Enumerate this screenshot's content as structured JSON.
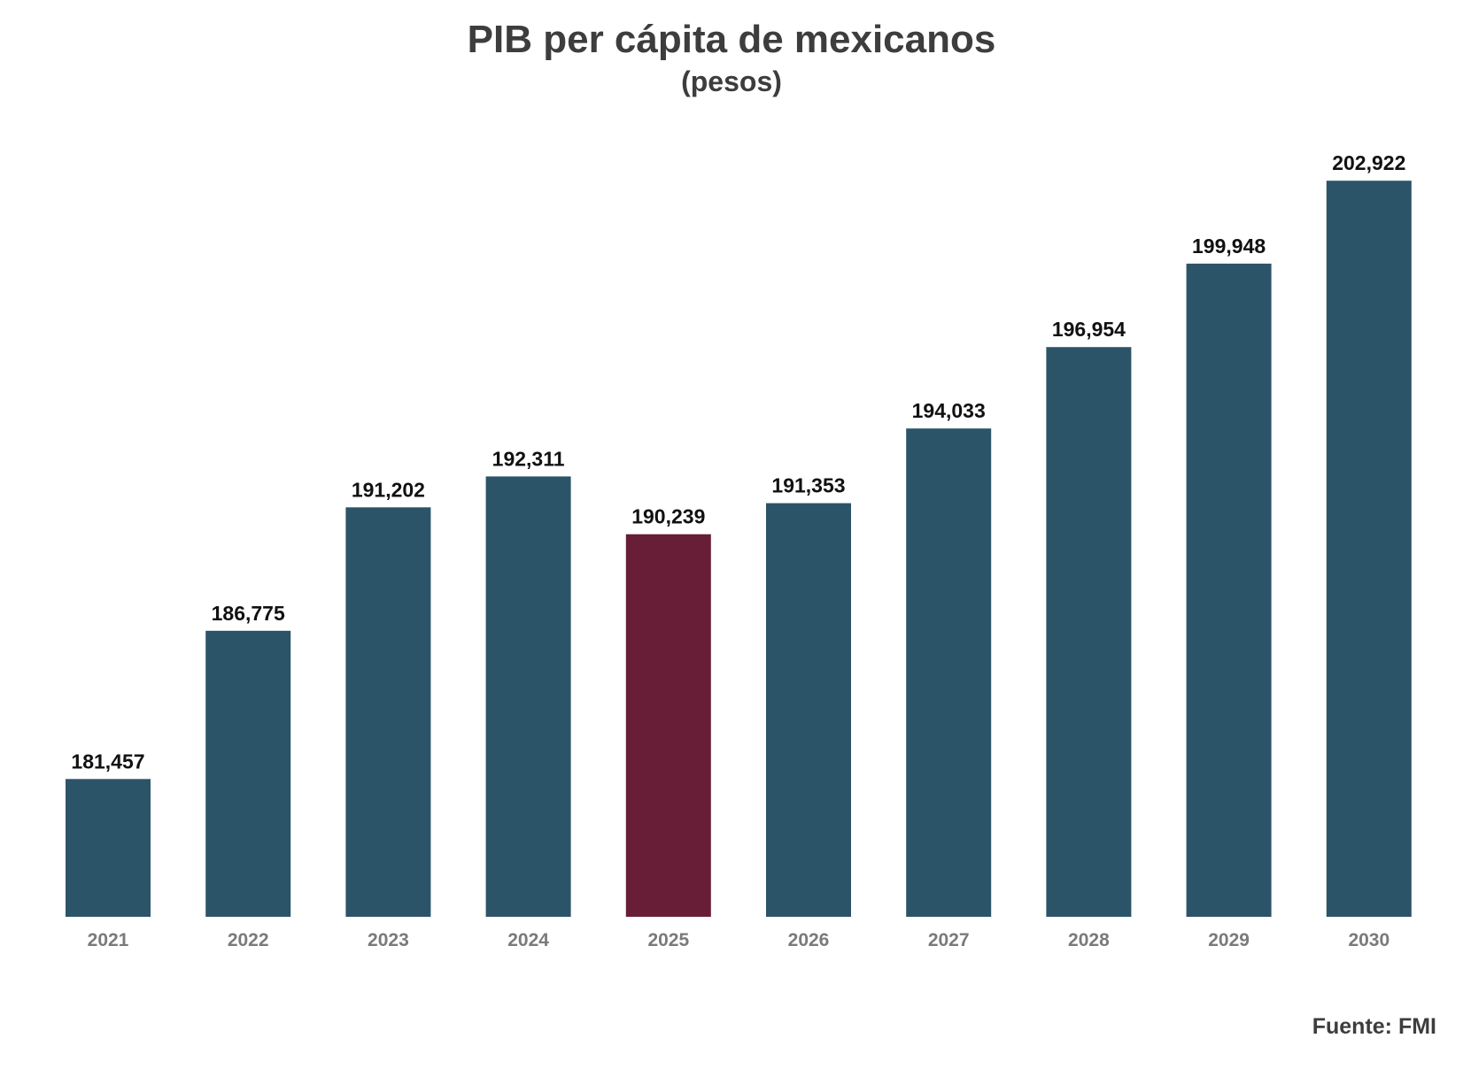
{
  "chart_data": {
    "type": "bar",
    "title": "PIB per cápita de mexicanos",
    "subtitle": "(pesos)",
    "xlabel": "",
    "ylabel": "",
    "categories": [
      "2021",
      "2022",
      "2023",
      "2024",
      "2025",
      "2026",
      "2027",
      "2028",
      "2029",
      "2030"
    ],
    "values": [
      181457,
      186775,
      191202,
      192311,
      190239,
      191353,
      194033,
      196954,
      199948,
      202922
    ],
    "value_labels": [
      "181,457",
      "186,775",
      "191,202",
      "192,311",
      "190,239",
      "191,353",
      "194,033",
      "196,954",
      "199,948",
      "202,922"
    ],
    "highlight_category": "2025",
    "colors": {
      "bar": "#2c5468",
      "highlight": "#671e36"
    },
    "grid": false,
    "legend": "none"
  },
  "source": "Fuente: FMI"
}
